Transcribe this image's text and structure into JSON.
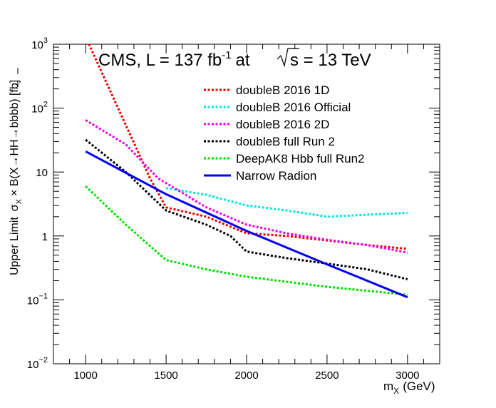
{
  "chart_data": {
    "type": "line",
    "title": "CMS, L = 137 fb",
    "title_sup": "-1",
    "title_mid": "at",
    "title_sqrt": "s = 13 TeV",
    "xlabel": "m",
    "xlabel_sub": "X",
    "xlabel_unit": "(GeV)",
    "ylabel": "Upper Limit",
    "ylabel_sigma": "σ",
    "ylabel_sub": "X",
    "ylabel_rest": "× B(X→HH→bbbb) [fb]",
    "x_scale": "linear",
    "y_scale": "log",
    "xlim": [
      800,
      3200
    ],
    "ylim": [
      0.01,
      1000
    ],
    "x_ticks": [
      1000,
      1500,
      2000,
      2500,
      3000
    ],
    "y_ticks": [
      {
        "value": 0.01,
        "base": "10",
        "exp": "−2"
      },
      {
        "value": 0.1,
        "base": "10",
        "exp": "−1"
      },
      {
        "value": 1,
        "base": "1",
        "exp": ""
      },
      {
        "value": 10,
        "base": "10",
        "exp": ""
      },
      {
        "value": 100,
        "base": "10",
        "exp": "2"
      },
      {
        "value": 1000,
        "base": "10",
        "exp": "3"
      }
    ],
    "grid": false,
    "legend_position": "top-right",
    "series": [
      {
        "name": "doubleB 2016 1D",
        "color": "#ee0000",
        "style": "dotted",
        "points": [
          [
            1000,
            1300
          ],
          [
            1400,
            8
          ],
          [
            1500,
            2.8
          ],
          [
            1750,
            2.0
          ],
          [
            2000,
            1.1
          ],
          [
            2250,
            1.0
          ],
          [
            2500,
            0.85
          ],
          [
            2750,
            0.72
          ],
          [
            3000,
            0.63
          ]
        ]
      },
      {
        "name": "doubleB 2016 Official",
        "color": "#00e5e5",
        "style": "dotted",
        "points": [
          [
            1500,
            5.6
          ],
          [
            1750,
            4.4
          ],
          [
            2000,
            3.0
          ],
          [
            2250,
            2.5
          ],
          [
            2500,
            2.0
          ],
          [
            2750,
            2.15
          ],
          [
            3000,
            2.3
          ]
        ]
      },
      {
        "name": "doubleB 2016 2D",
        "color": "#ee00ee",
        "style": "dotted",
        "points": [
          [
            1000,
            65
          ],
          [
            1250,
            27
          ],
          [
            1450,
            8
          ],
          [
            1750,
            2.8
          ],
          [
            2000,
            1.5
          ],
          [
            2250,
            1.1
          ],
          [
            2500,
            0.87
          ],
          [
            2750,
            0.72
          ],
          [
            3000,
            0.55
          ]
        ]
      },
      {
        "name": "doubleB full Run 2",
        "color": "#000000",
        "style": "dotted",
        "points": [
          [
            1000,
            32
          ],
          [
            1250,
            10
          ],
          [
            1500,
            2.5
          ],
          [
            1750,
            1.5
          ],
          [
            1900,
            1.0
          ],
          [
            2000,
            0.57
          ],
          [
            2250,
            0.45
          ],
          [
            2500,
            0.37
          ],
          [
            2750,
            0.3
          ],
          [
            3000,
            0.21
          ]
        ]
      },
      {
        "name": "DeepAK8 Hbb full Run2",
        "color": "#00dd00",
        "style": "dotted",
        "points": [
          [
            1000,
            6
          ],
          [
            1250,
            1.5
          ],
          [
            1500,
            0.42
          ],
          [
            1750,
            0.3
          ],
          [
            2000,
            0.23
          ],
          [
            2500,
            0.16
          ],
          [
            3000,
            0.12
          ]
        ]
      },
      {
        "name": "Narrow Radion",
        "color": "#0000ee",
        "style": "solid",
        "points": [
          [
            1000,
            21
          ],
          [
            1500,
            4.5
          ],
          [
            2000,
            1.2
          ],
          [
            2500,
            0.36
          ],
          [
            3000,
            0.11
          ]
        ]
      }
    ]
  }
}
